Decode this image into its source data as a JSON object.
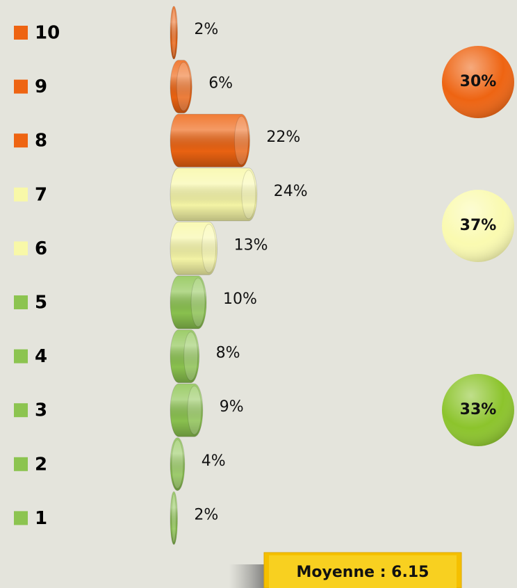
{
  "chart_data": {
    "type": "bar",
    "categories": [
      "10",
      "9",
      "8",
      "7",
      "6",
      "5",
      "4",
      "3",
      "2",
      "1"
    ],
    "values": [
      2,
      6,
      22,
      24,
      13,
      10,
      8,
      9,
      4,
      2
    ],
    "value_labels": [
      "2%",
      "6%",
      "22%",
      "24%",
      "13%",
      "10%",
      "8%",
      "9%",
      "4%",
      "2%"
    ],
    "colors": [
      "#ee6412",
      "#ee6412",
      "#ee6412",
      "#f8f8a8",
      "#f8f8a8",
      "#8cc450",
      "#8cc450",
      "#8cc450",
      "#8cc450",
      "#8cc450"
    ],
    "groups": {
      "values": [
        30,
        37,
        33
      ],
      "value_labels": [
        "30%",
        "37%",
        "33%"
      ],
      "colors": [
        "#ee6412",
        "#fafab0",
        "#8cc42c"
      ]
    },
    "annotation": "Moyenne : 6.15"
  }
}
